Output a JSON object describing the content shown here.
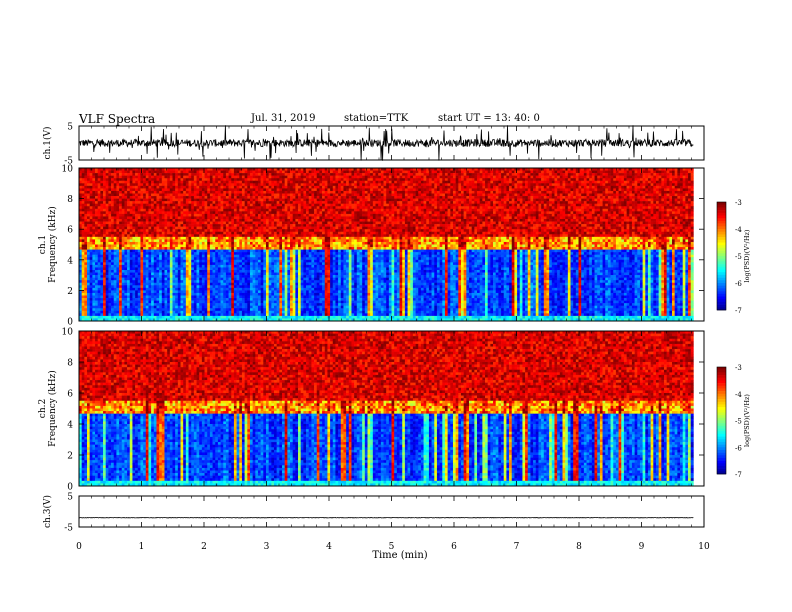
{
  "header": {
    "title": "VLF  Spectra",
    "date": "Jul.  31,  2019",
    "station": "station=TTK",
    "start": "start  UT  =    13: 40: 0"
  },
  "chart_data": [
    {
      "type": "line",
      "panel": "ch1-waveform",
      "ylabel": "ch.1(V)",
      "yticks": [
        "5",
        "-5"
      ],
      "ylim": [
        -5,
        5
      ],
      "xlim": [
        0,
        10
      ],
      "series_color": "#000000",
      "description_of_signal": "noisy trace centered near 0 V with frequent spikes to about +/-5 V"
    },
    {
      "type": "heatmap",
      "panel": "ch1-spectrogram",
      "ylabel": "ch.1\nFrequency  (kHz)",
      "yticks": [
        "0",
        "2",
        "4",
        "6",
        "8",
        "10"
      ],
      "ylim": [
        0,
        10
      ],
      "xlim": [
        0,
        10
      ],
      "colorbar": {
        "label": "log(PSD)(V²/Hz)",
        "ticks": [
          "-3",
          "-4",
          "-5",
          "-6",
          "-7"
        ],
        "range": [
          -7,
          -3
        ]
      }
    },
    {
      "type": "heatmap",
      "panel": "ch2-spectrogram",
      "ylabel": "ch.2\nFrequency  (kHz)",
      "yticks": [
        "0",
        "2",
        "4",
        "6",
        "8",
        "10"
      ],
      "ylim": [
        0,
        10
      ],
      "xlim": [
        0,
        10
      ],
      "colorbar": {
        "label": "log(PSD)(V²/Hz)",
        "ticks": [
          "-3",
          "-4",
          "-5",
          "-6",
          "-7"
        ],
        "range": [
          -7,
          -3
        ]
      }
    },
    {
      "type": "line",
      "panel": "ch3-waveform",
      "ylabel": "ch.3(V)",
      "yticks": [
        "5",
        "-5"
      ],
      "ylim": [
        -5,
        5
      ],
      "xlim": [
        0,
        10
      ],
      "series_color": "#000000",
      "description_of_signal": "flat line at about -2 V"
    }
  ],
  "xaxis": {
    "label": "Time  (min)",
    "ticks": [
      "0",
      "1",
      "2",
      "3",
      "4",
      "5",
      "6",
      "7",
      "8",
      "9",
      "10"
    ]
  }
}
